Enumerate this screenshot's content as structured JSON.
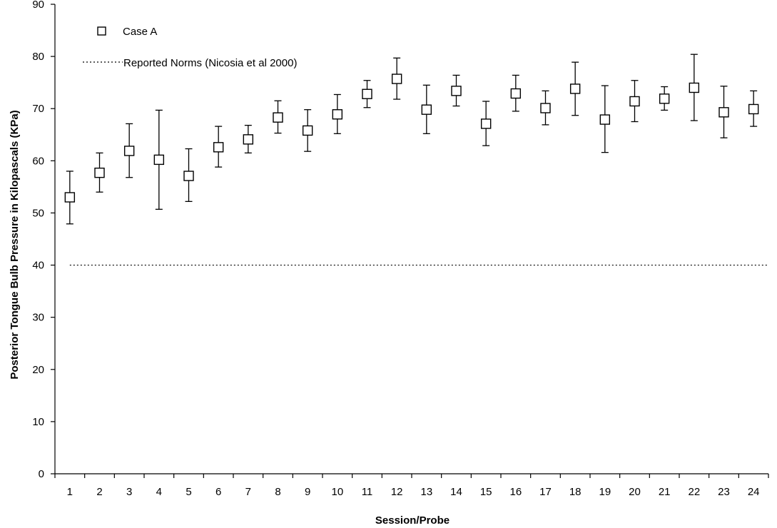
{
  "chart_data": {
    "type": "scatter",
    "xlabel": "Session/Probe",
    "ylabel": "Posterior Tongue Bulb Pressure in Kilopascals (KPa)",
    "ylim": [
      0,
      90
    ],
    "yticks": [
      0,
      10,
      20,
      30,
      40,
      50,
      60,
      70,
      80,
      90
    ],
    "categories": [
      "1",
      "2",
      "3",
      "4",
      "5",
      "6",
      "7",
      "8",
      "9",
      "10",
      "11",
      "12",
      "13",
      "14",
      "15",
      "16",
      "17",
      "18",
      "19",
      "20",
      "21",
      "22",
      "23",
      "24"
    ],
    "grid": false,
    "legend_position": "top-left",
    "series": [
      {
        "name": "Case A",
        "marker": "square-open",
        "values": [
          53,
          57.7,
          61.9,
          60.2,
          57.1,
          62.6,
          64.1,
          68.3,
          65.8,
          68.9,
          72.8,
          75.7,
          69.8,
          73.4,
          67.1,
          72.9,
          70.1,
          73.8,
          67.9,
          71.4,
          71.9,
          74,
          69.3,
          69.9
        ],
        "error_low": [
          47.9,
          54,
          56.8,
          50.7,
          52.2,
          58.8,
          61.5,
          65.3,
          61.8,
          65.2,
          70.2,
          71.8,
          65.2,
          70.5,
          62.9,
          69.5,
          66.9,
          68.7,
          61.6,
          67.5,
          69.7,
          67.7,
          64.4,
          66.6
        ],
        "error_high": [
          58,
          61.5,
          67.1,
          69.7,
          62.3,
          66.6,
          66.8,
          71.5,
          69.8,
          72.7,
          75.4,
          79.7,
          74.5,
          76.4,
          71.4,
          76.4,
          73.4,
          78.9,
          74.4,
          75.4,
          74.2,
          80.4,
          74.3,
          73.4
        ]
      }
    ],
    "reference_line": {
      "name": "Reported Norms (Nicosia et al 2000)",
      "value": 40,
      "style": "dotted"
    }
  }
}
